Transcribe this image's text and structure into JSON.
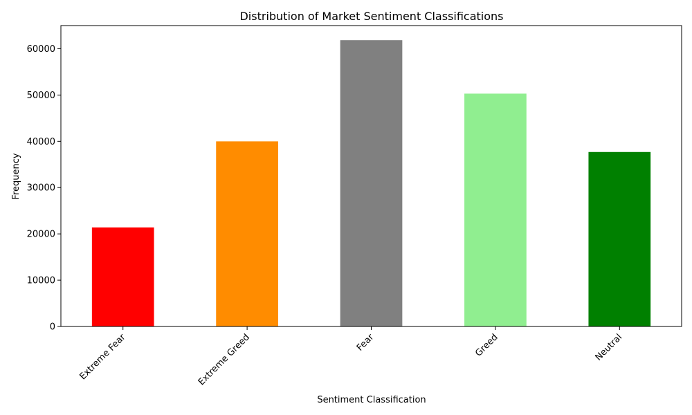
{
  "chart_data": {
    "type": "bar",
    "title": "Distribution of Market Sentiment Classifications",
    "xlabel": "Sentiment Classification",
    "ylabel": "Frequency",
    "categories": [
      "Extreme Fear",
      "Extreme Greed",
      "Fear",
      "Greed",
      "Neutral"
    ],
    "values": [
      21400,
      39990,
      61840,
      50300,
      37690
    ],
    "colors": [
      "#ff0000",
      "#ff8c00",
      "#808080",
      "#90ee90",
      "#008000"
    ],
    "ylim": [
      0,
      65000
    ],
    "yticks": [
      0,
      10000,
      20000,
      30000,
      40000,
      50000,
      60000
    ],
    "ytick_labels": [
      "0",
      "10000",
      "20000",
      "30000",
      "40000",
      "50000",
      "60000"
    ],
    "grid": false,
    "legend": "none"
  }
}
